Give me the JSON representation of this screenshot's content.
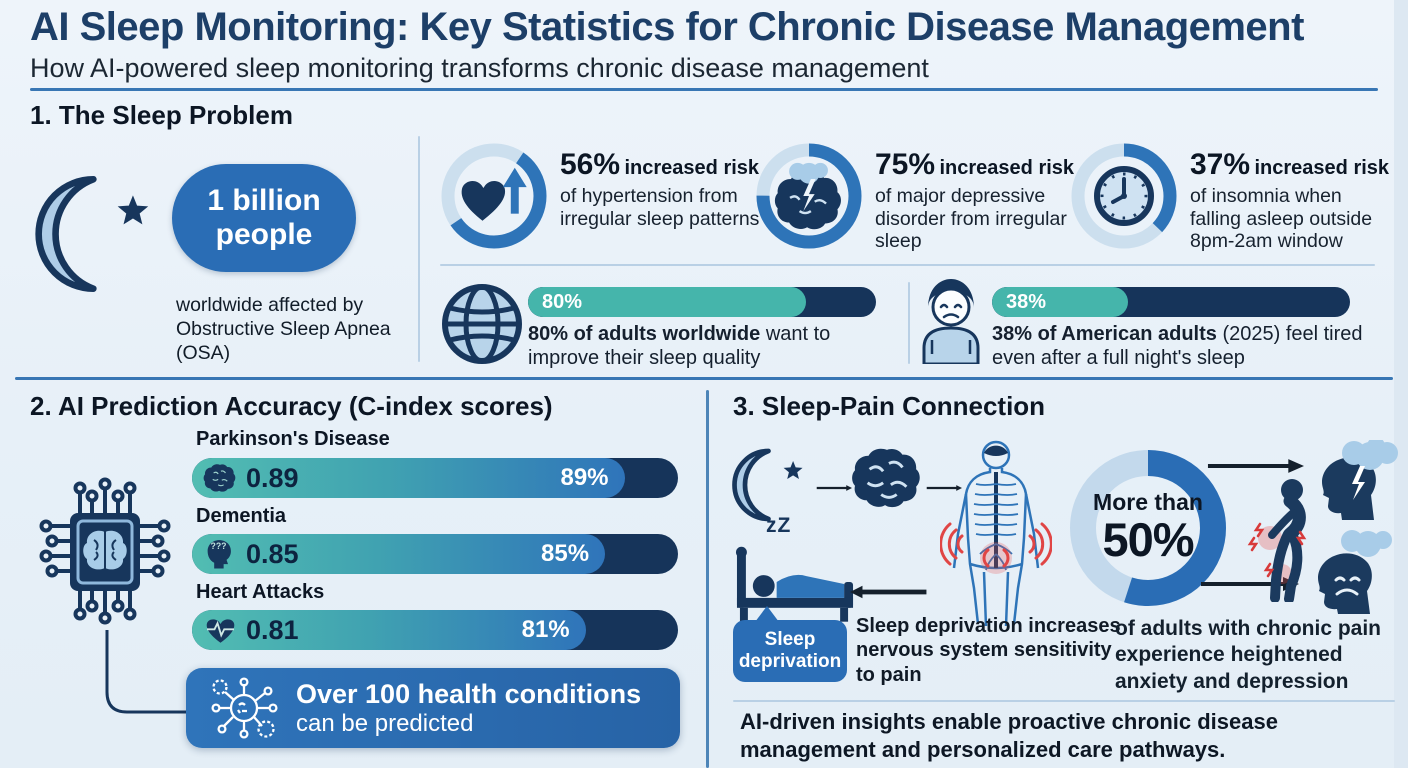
{
  "colors": {
    "navy": "#17365c",
    "accent_blue": "#2a6db5",
    "teal": "#45b5ab",
    "light_icon_blue": "#aecde8",
    "ring_light": "#ccdfee",
    "track_navy": "#16345a",
    "pain_red": "#e04545",
    "background": "#e8f1f8"
  },
  "header": {
    "title": "AI Sleep Monitoring: Key Statistics for Chronic Disease Management",
    "subtitle": "How AI-powered sleep monitoring transforms chronic disease management"
  },
  "s1": {
    "heading": "1. The Sleep Problem",
    "headline": {
      "icon": "moon-star-icon",
      "value": "1 billion people",
      "caption": "worldwide affected by Obstructive Sleep Apnea (OSA)"
    },
    "risks": [
      {
        "icon": "heart-up-arrow-icon",
        "value": "56%",
        "emph": "increased risk",
        "rest": "of hypertension from irregular sleep patterns",
        "percent": 56
      },
      {
        "icon": "brain-storm-icon",
        "value": "75%",
        "emph": "increased risk",
        "rest": "of major depressive disorder from irregular sleep",
        "percent": 75
      },
      {
        "icon": "clock-icon",
        "value": "37%",
        "emph": "increased risk",
        "rest": "of insomnia when falling asleep outside 8pm-2am window",
        "percent": 37
      }
    ],
    "progress": [
      {
        "icon": "globe-icon",
        "label": "80%",
        "percent": 80,
        "emph": "80% of adults worldwide",
        "rest": " want to improve their sleep quality"
      },
      {
        "icon": "tired-person-icon",
        "label": "38%",
        "percent": 38,
        "emph": "38% of American adults",
        "rest": " (2025) feel tired even after a full night's sleep"
      }
    ]
  },
  "s2": {
    "heading": "2. AI Prediction Accuracy (C-index scores)",
    "icon": "chip-brain-icon",
    "bars": [
      {
        "icon": "brain-icon",
        "label": "Parkinson's Disease",
        "score": "0.89",
        "pct_label": "89%",
        "percent": 89
      },
      {
        "icon": "head-questions-icon",
        "label": "Dementia",
        "score": "0.85",
        "pct_label": "85%",
        "percent": 85
      },
      {
        "icon": "heart-pulse-icon",
        "label": "Heart Attacks",
        "score": "0.81",
        "pct_label": "81%",
        "percent": 81
      }
    ],
    "callout": {
      "icon": "health-network-icon",
      "emph": "Over 100 health conditions",
      "rest": "can be predicted"
    }
  },
  "s3": {
    "heading": "3. Sleep-Pain Connection",
    "zzz": "zZ",
    "bubble": "Sleep deprivation",
    "flow_text": "Sleep deprivation increases nervous system sensitivity to pain",
    "donut": {
      "prefix": "More than",
      "value": "50%",
      "percent": 55,
      "caption": "of adults with chronic pain experience heightened anxiety and depression"
    },
    "footer": "AI-driven insights enable proactive chronic disease management and personalized care pathways."
  },
  "chart_data": [
    {
      "type": "bar",
      "title": "AI Prediction Accuracy (C-index scores)",
      "categories": [
        "Parkinson's Disease",
        "Dementia",
        "Heart Attacks"
      ],
      "values": [
        0.89,
        0.85,
        0.81
      ],
      "value_labels": [
        "89%",
        "85%",
        "81%"
      ],
      "xlim": [
        0,
        1
      ],
      "orientation": "horizontal"
    },
    {
      "type": "bar",
      "title": "Sleep quality attitudes",
      "categories": [
        "Adults worldwide who want to improve their sleep quality",
        "American adults (2025) who feel tired even after a full night's sleep"
      ],
      "values": [
        80,
        38
      ],
      "unit": "%",
      "orientation": "horizontal"
    },
    {
      "type": "pie",
      "title": "Increased risk linked to irregular sleep",
      "items": [
        {
          "label": "increased risk of hypertension from irregular sleep patterns",
          "value": 56
        },
        {
          "label": "increased risk of major depressive disorder from irregular sleep",
          "value": 75
        },
        {
          "label": "increased risk of insomnia when falling asleep outside 8pm-2am window",
          "value": 37
        }
      ]
    },
    {
      "type": "pie",
      "title": "Chronic pain and mental health",
      "items": [
        {
          "label": "adults with chronic pain who experience heightened anxiety and depression",
          "value": 50,
          "qualifier": "More than"
        }
      ]
    },
    {
      "type": "table",
      "title": "Other statistics",
      "rows": [
        [
          "1 billion people",
          "worldwide affected by Obstructive Sleep Apnea (OSA)"
        ],
        [
          "Over 100",
          "health conditions can be predicted"
        ]
      ]
    }
  ]
}
